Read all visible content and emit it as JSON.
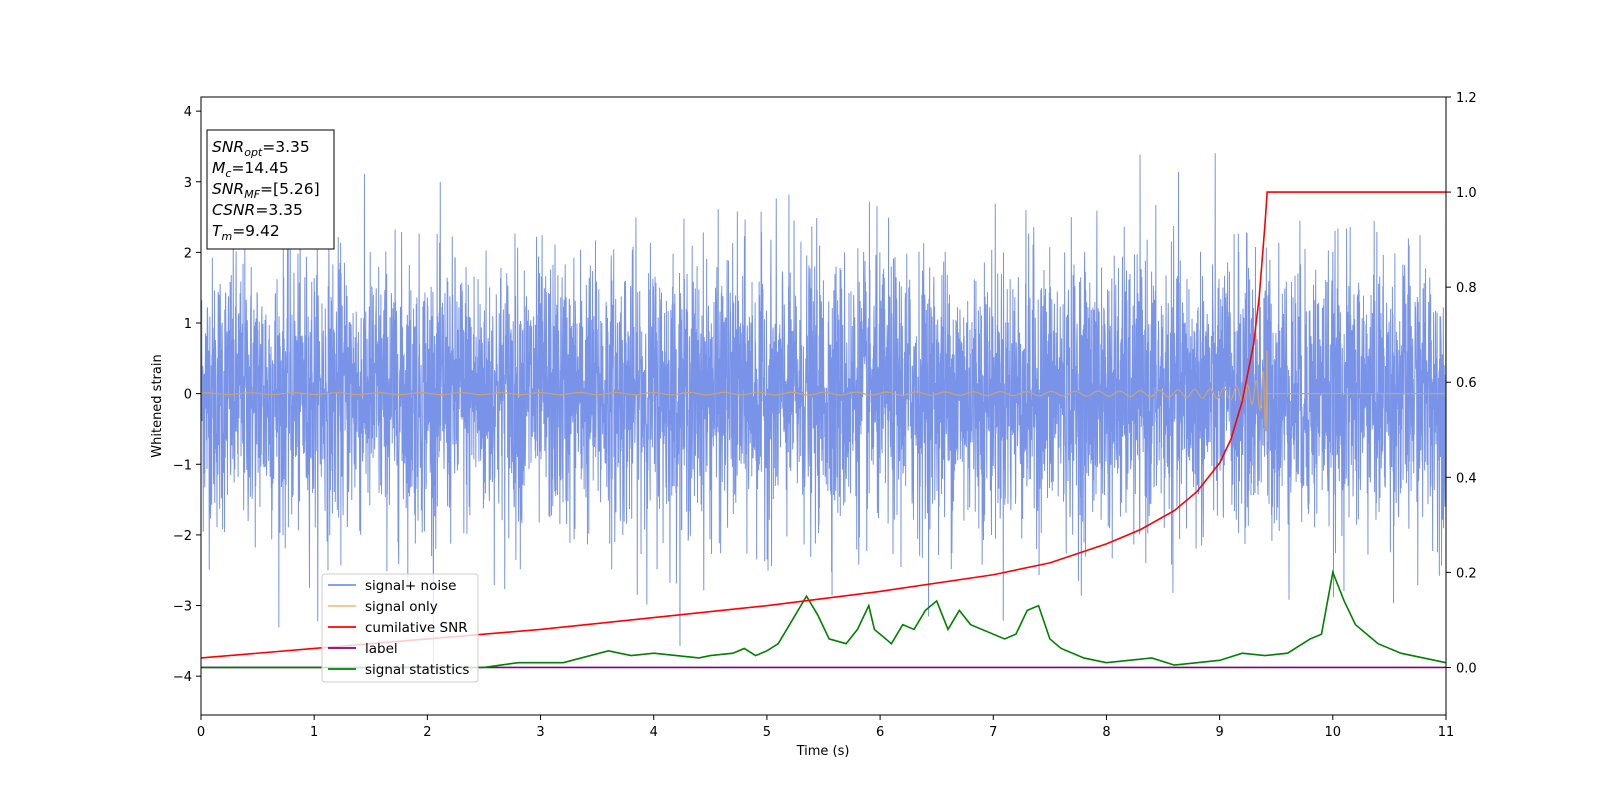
{
  "chart_data": {
    "type": "line",
    "xlabel": "Time (s)",
    "ylabel": "Whitened strain",
    "xlim": [
      0,
      11
    ],
    "ylim": [
      -4.55,
      4.2
    ],
    "ylim_right": [
      -0.1,
      1.2
    ],
    "xticks": [
      0,
      1,
      2,
      3,
      4,
      5,
      6,
      7,
      8,
      9,
      10,
      11
    ],
    "yticks": [
      -4,
      -3,
      -2,
      -1,
      0,
      1,
      2,
      3,
      4
    ],
    "yticks_right": [
      "0.0",
      "0.2",
      "0.4",
      "0.6",
      "0.8",
      "1.0",
      "1.2"
    ],
    "grid": false,
    "legend_position": "lower-left",
    "info_box": {
      "lines": [
        {
          "main": "SNR",
          "sub": "opt",
          "value": "=3.35"
        },
        {
          "main": "M",
          "sub": "c",
          "value": "=14.45"
        },
        {
          "main": "SNR",
          "sub": "MF",
          "value": "=[5.26]"
        },
        {
          "main": "CSNR",
          "sub": "",
          "value": "=3.35"
        },
        {
          "main": "T",
          "sub": "m",
          "value": "=9.42"
        }
      ]
    },
    "series": [
      {
        "name": "signal+ noise",
        "color": "#7893e8",
        "axis": "left",
        "description_values": {
          "noise_std": 1.0,
          "typical_extent": [
            -2.5,
            2.5
          ]
        }
      },
      {
        "name": "signal only",
        "color": "#c8a37a",
        "legend_color": "#f5c27a",
        "axis": "left",
        "chirp": {
          "merger_time": 9.42,
          "peak_amplitude": 0.65
        }
      },
      {
        "name": "cumilative SNR",
        "color": "#ff0000",
        "axis": "right",
        "x": [
          0,
          1,
          2,
          3,
          4,
          5,
          6,
          7,
          7.5,
          8,
          8.3,
          8.6,
          8.8,
          9.0,
          9.1,
          9.2,
          9.3,
          9.35,
          9.4,
          9.42,
          11
        ],
        "y": [
          0.02,
          0.04,
          0.06,
          0.08,
          0.105,
          0.13,
          0.16,
          0.195,
          0.22,
          0.26,
          0.29,
          0.33,
          0.37,
          0.43,
          0.48,
          0.56,
          0.68,
          0.78,
          0.93,
          1.0,
          1.0
        ]
      },
      {
        "name": "label",
        "color": "#800080",
        "axis": "right",
        "x": [
          0,
          11
        ],
        "y": [
          0.0,
          0.0
        ]
      },
      {
        "name": "signal statistics",
        "color": "#008000",
        "axis": "right",
        "x": [
          0,
          0.5,
          1,
          1.5,
          2,
          2.5,
          2.8,
          3.2,
          3.6,
          3.8,
          4.0,
          4.2,
          4.4,
          4.5,
          4.7,
          4.8,
          4.9,
          5.0,
          5.1,
          5.2,
          5.35,
          5.45,
          5.55,
          5.7,
          5.8,
          5.9,
          5.95,
          6.05,
          6.1,
          6.2,
          6.3,
          6.4,
          6.5,
          6.6,
          6.7,
          6.8,
          6.9,
          7.0,
          7.1,
          7.2,
          7.3,
          7.4,
          7.5,
          7.6,
          7.8,
          8.0,
          8.2,
          8.4,
          8.6,
          8.8,
          9.0,
          9.2,
          9.4,
          9.6,
          9.8,
          9.9,
          10.0,
          10.1,
          10.2,
          10.4,
          10.5,
          10.6,
          10.8,
          11
        ],
        "y": [
          0.0,
          0.0,
          0.0,
          0.0,
          0.0,
          0.0,
          0.01,
          0.01,
          0.035,
          0.025,
          0.03,
          0.025,
          0.02,
          0.025,
          0.03,
          0.04,
          0.025,
          0.035,
          0.05,
          0.09,
          0.15,
          0.11,
          0.06,
          0.05,
          0.08,
          0.13,
          0.08,
          0.06,
          0.05,
          0.09,
          0.08,
          0.12,
          0.14,
          0.08,
          0.12,
          0.09,
          0.08,
          0.07,
          0.06,
          0.07,
          0.12,
          0.13,
          0.06,
          0.04,
          0.02,
          0.01,
          0.015,
          0.02,
          0.005,
          0.01,
          0.015,
          0.03,
          0.025,
          0.03,
          0.06,
          0.07,
          0.2,
          0.14,
          0.09,
          0.05,
          0.04,
          0.03,
          0.02,
          0.01
        ]
      }
    ]
  }
}
